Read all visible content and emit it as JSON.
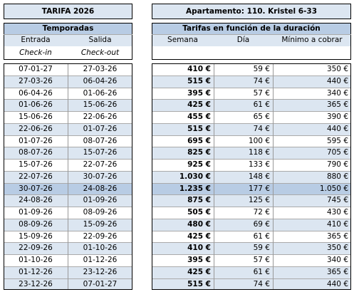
{
  "left_header": "TARIFA 2026",
  "right_header": "Apartamento: 110. Kristel 6-33",
  "temporadas": {
    "title": "Temporadas",
    "columns": [
      "Entrada",
      "Salida"
    ],
    "subcolumns": [
      "Check-in",
      "Check-out"
    ]
  },
  "tarifas": {
    "title": "Tarifas en función de la duración",
    "columns": [
      "Semana",
      "Día",
      "Mínimo a cobrar"
    ]
  },
  "rows": [
    [
      "07-01-27",
      "27-03-26",
      "410 €",
      "59 €",
      "350 €"
    ],
    [
      "27-03-26",
      "06-04-26",
      "515 €",
      "74 €",
      "440 €"
    ],
    [
      "06-04-26",
      "01-06-26",
      "395 €",
      "57 €",
      "340 €"
    ],
    [
      "01-06-26",
      "15-06-26",
      "425 €",
      "61 €",
      "365 €"
    ],
    [
      "15-06-26",
      "22-06-26",
      "455 €",
      "65 €",
      "390 €"
    ],
    [
      "22-06-26",
      "01-07-26",
      "515 €",
      "74 €",
      "440 €"
    ],
    [
      "01-07-26",
      "08-07-26",
      "695 €",
      "100 €",
      "595 €"
    ],
    [
      "08-07-26",
      "15-07-26",
      "825 €",
      "118 €",
      "705 €"
    ],
    [
      "15-07-26",
      "22-07-26",
      "925 €",
      "133 €",
      "790 €"
    ],
    [
      "22-07-26",
      "30-07-26",
      "1.030 €",
      "148 €",
      "880 €"
    ],
    [
      "30-07-26",
      "24-08-26",
      "1.235 €",
      "177 €",
      "1.050 €"
    ],
    [
      "24-08-26",
      "01-09-26",
      "875 €",
      "125 €",
      "745 €"
    ],
    [
      "01-09-26",
      "08-09-26",
      "505 €",
      "72 €",
      "430 €"
    ],
    [
      "08-09-26",
      "15-09-26",
      "480 €",
      "69 €",
      "410 €"
    ],
    [
      "15-09-26",
      "22-09-26",
      "425 €",
      "61 €",
      "365 €"
    ],
    [
      "22-09-26",
      "01-10-26",
      "410 €",
      "59 €",
      "350 €"
    ],
    [
      "01-10-26",
      "01-12-26",
      "395 €",
      "57 €",
      "340 €"
    ],
    [
      "01-12-26",
      "23-12-26",
      "425 €",
      "61 €",
      "365 €"
    ],
    [
      "23-12-26",
      "07-01-27",
      "515 €",
      "74 €",
      "440 €"
    ]
  ]
}
